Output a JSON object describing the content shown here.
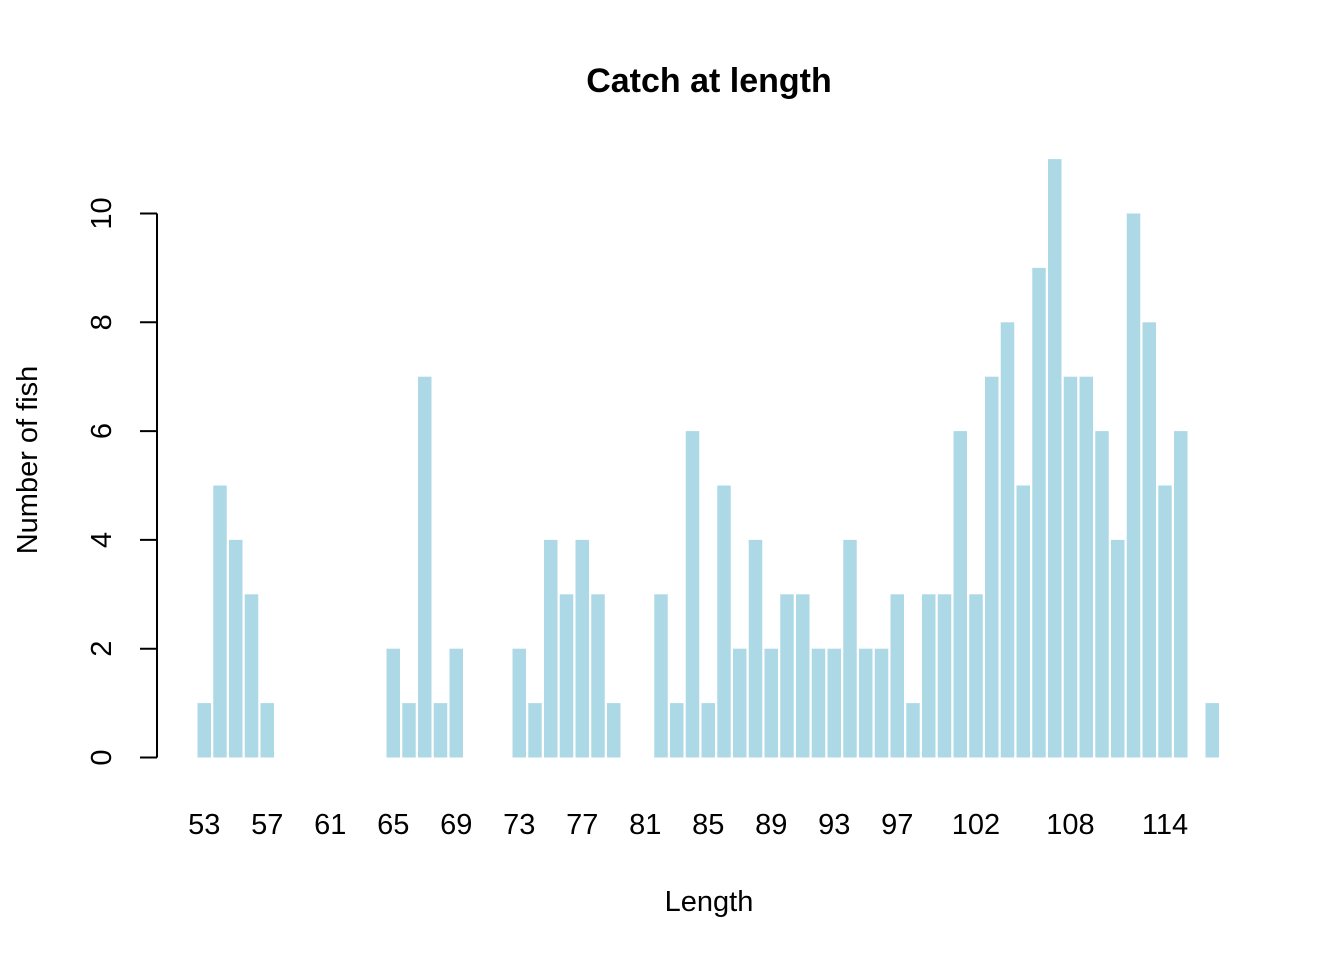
{
  "chart_data": {
    "type": "bar",
    "title": "Catch at length",
    "xlabel": "Length",
    "ylabel": "Number of fish",
    "categories": [
      "53",
      "54",
      "55",
      "56",
      "57",
      "58",
      "59",
      "60",
      "61",
      "62",
      "63",
      "64",
      "65",
      "66",
      "67",
      "68",
      "69",
      "70",
      "71",
      "72",
      "73",
      "74",
      "75",
      "76",
      "77",
      "78",
      "79",
      "80",
      "81",
      "82",
      "83",
      "84",
      "85",
      "86",
      "87",
      "88",
      "89",
      "90",
      "91",
      "92",
      "93",
      "94",
      "95",
      "96",
      "97",
      "98",
      "99",
      "100",
      "101",
      "102",
      "103",
      "104",
      "105",
      "106",
      "107",
      "108",
      "109",
      "110",
      "111",
      "112",
      "113",
      "114",
      "115",
      "116",
      "117"
    ],
    "values": [
      1,
      5,
      4,
      3,
      1,
      0,
      0,
      0,
      0,
      0,
      0,
      0,
      2,
      1,
      7,
      1,
      2,
      0,
      0,
      0,
      2,
      1,
      4,
      3,
      4,
      3,
      1,
      0,
      0,
      3,
      1,
      6,
      1,
      5,
      2,
      4,
      2,
      3,
      3,
      2,
      2,
      4,
      2,
      2,
      3,
      1,
      3,
      3,
      6,
      3,
      7,
      8,
      5,
      9,
      11,
      7,
      7,
      6,
      4,
      10,
      8,
      5,
      6,
      0,
      1
    ],
    "x_tick_labels": [
      "53",
      "57",
      "61",
      "65",
      "69",
      "73",
      "77",
      "81",
      "85",
      "89",
      "93",
      "97",
      "102",
      "108",
      "114"
    ],
    "x_tick_label_categories": [
      "53",
      "57",
      "61",
      "65",
      "69",
      "73",
      "77",
      "81",
      "85",
      "89",
      "93",
      "97",
      "102",
      "108",
      "114"
    ],
    "y_ticks": [
      0,
      2,
      4,
      6,
      8,
      10
    ],
    "ylim": [
      0,
      11
    ],
    "bar_color": "#add8e6",
    "grid": false,
    "legend": "none"
  }
}
